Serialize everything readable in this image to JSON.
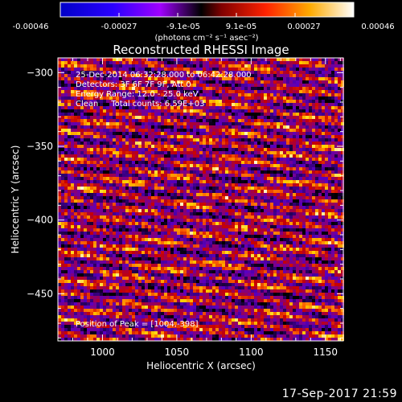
{
  "colorbar": {
    "ticks": [
      "-0.00046",
      "-0.00027",
      "-9.1e-05",
      "9.1e-05",
      "0.00027",
      "0.00046"
    ],
    "unit_label": "(photons cm⁻² s⁻¹ asec⁻²)",
    "range": [
      -0.00046,
      0.00046
    ]
  },
  "chart_data": {
    "type": "heatmap",
    "title": "Reconstructed RHESSI Image",
    "xlabel": "Heliocentric X (arcsec)",
    "ylabel": "Heliocentric Y (arcsec)",
    "xlim": [
      970,
      1162
    ],
    "ylim": [
      -482,
      -290
    ],
    "x_ticks": [
      1000,
      1050,
      1100,
      1150
    ],
    "y_ticks": [
      -300,
      -350,
      -400,
      -450
    ],
    "x_tick_labels": [
      "1000",
      "1050",
      "1100",
      "1150"
    ],
    "y_tick_labels": [
      "−300",
      "−350",
      "−400",
      "−450"
    ],
    "pattern": "diagonal banded noise",
    "colormap": [
      "#000000",
      "#2a0060",
      "#5a00c0",
      "#8a0070",
      "#c80000",
      "#ff6a00",
      "#ffd400",
      "#ffffff"
    ],
    "annotations": {
      "time_range": "25-Dec-2014 06:32:28.000 to 06:42:28.000",
      "detectors": "Detectors: 3F 6F 7F 9F, Att 0",
      "energy_range": "Energy Range: 12.0 - 25.0 keV",
      "clean_counts": "Clean     Total counts: 6.59E+03",
      "peak_position": "Position of Peak = [1004,-398]"
    },
    "peak": {
      "x": 1004,
      "y": -398
    }
  },
  "footer": {
    "timestamp": "17-Sep-2017 21:59"
  }
}
